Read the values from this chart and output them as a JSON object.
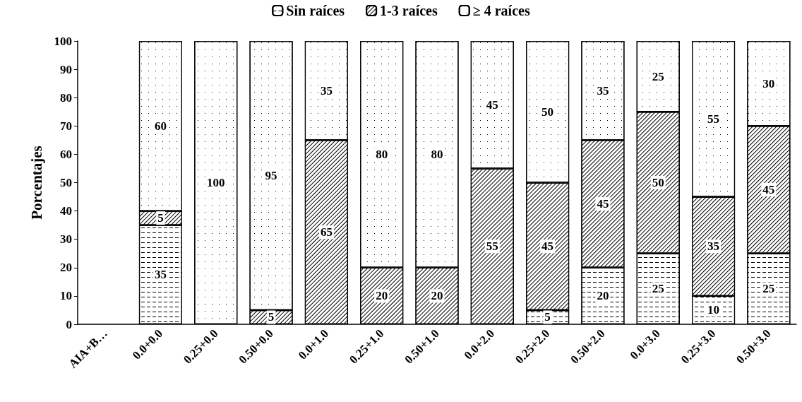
{
  "chart_data": {
    "type": "bar",
    "stacked": true,
    "ylabel": "Porcentajes",
    "categories": [
      "AIA+B…",
      "0.0+0.0",
      "0.25+0.0",
      "0.50+0.0",
      "0.0+1.0",
      "0.25+1.0",
      "0.50+1.0",
      "0.0+2.0",
      "0.25+2.0",
      "0.50+2.0",
      "0.0+3.0",
      "0.25+3.0",
      "0.50+3.0"
    ],
    "series": [
      {
        "name": "Sin raíces",
        "color": "#ffffff",
        "values": [
          null,
          35,
          null,
          null,
          null,
          null,
          null,
          null,
          5,
          20,
          25,
          10,
          25
        ]
      },
      {
        "name": "1-3 raíces",
        "color": "#ffffff",
        "values": [
          null,
          5,
          null,
          5,
          65,
          20,
          20,
          55,
          45,
          45,
          50,
          35,
          45
        ]
      },
      {
        "name": "≥ 4 raíces",
        "color": "#ffffff",
        "values": [
          null,
          60,
          100,
          95,
          35,
          80,
          80,
          45,
          50,
          35,
          25,
          55,
          30
        ]
      }
    ],
    "ylim": [
      0,
      100
    ],
    "yticks": [
      0,
      10,
      20,
      30,
      40,
      50,
      60,
      70,
      80,
      90,
      100
    ],
    "grid": false,
    "legend": "top",
    "data_labels": true
  }
}
